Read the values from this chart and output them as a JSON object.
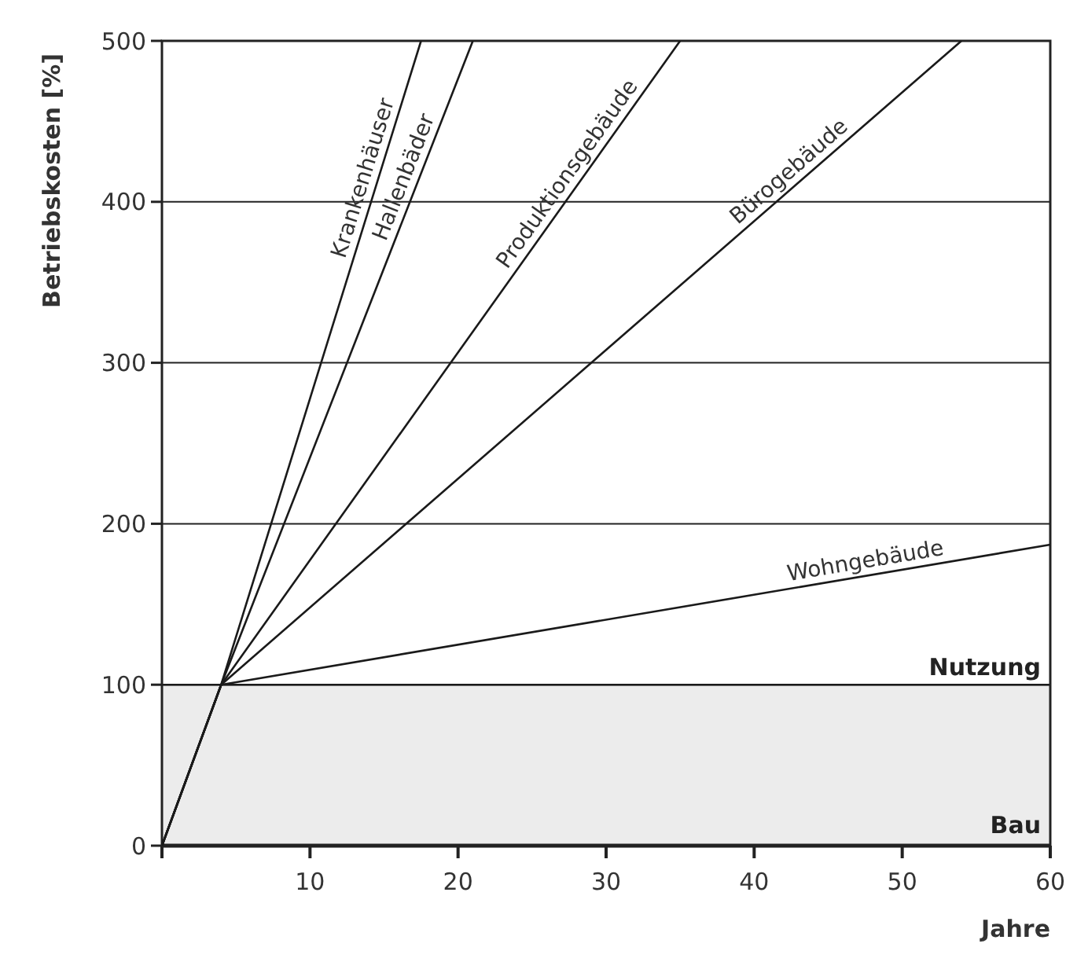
{
  "chart_data": {
    "type": "line",
    "xlabel": "Jahre",
    "ylabel": "Betriebskosten [%]",
    "xlim": [
      0,
      60
    ],
    "ylim": [
      0,
      500
    ],
    "xticks": [
      {
        "value": 0,
        "label": null
      },
      10,
      20,
      30,
      40,
      50,
      60
    ],
    "yticks": [
      0,
      100,
      200,
      300,
      400,
      500
    ],
    "grid": "y",
    "marker": "none",
    "line_style": "solid",
    "series": [
      {
        "name": "Krankenhäuser",
        "color": "#1a1a1a",
        "x": [
          0,
          4,
          17.5
        ],
        "values": [
          0,
          100,
          500
        ]
      },
      {
        "name": "Hallenbäder",
        "color": "#1a1a1a",
        "x": [
          0,
          4,
          21
        ],
        "values": [
          0,
          100,
          500
        ]
      },
      {
        "name": "Produktionsgebäude",
        "color": "#1a1a1a",
        "x": [
          0,
          4,
          35
        ],
        "values": [
          0,
          100,
          500
        ]
      },
      {
        "name": "Bürogebäude",
        "color": "#1a1a1a",
        "x": [
          0,
          4,
          54
        ],
        "values": [
          0,
          100,
          500
        ]
      },
      {
        "name": "Wohngebäude",
        "color": "#1a1a1a",
        "x": [
          0,
          4,
          60
        ],
        "values": [
          0,
          100,
          187
        ]
      }
    ],
    "bands": [
      {
        "axis": "y",
        "from": 0,
        "to": 100,
        "label": "Bau",
        "color": "#ececec"
      }
    ],
    "ref_lines": [
      {
        "axis": "y",
        "value": 100,
        "label": "Nutzung",
        "color": "#1a1a1a"
      }
    ]
  }
}
